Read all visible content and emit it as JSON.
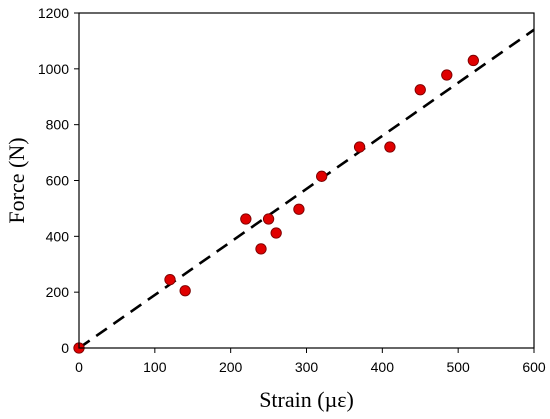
{
  "chart_data": {
    "type": "scatter",
    "title": "",
    "xlabel": "Strain (µε)",
    "ylabel": "Force (N)",
    "xlim": [
      0,
      600
    ],
    "ylim": [
      0,
      1200
    ],
    "x_ticks": [
      0,
      100,
      200,
      300,
      400,
      500,
      600
    ],
    "y_ticks": [
      0,
      200,
      400,
      600,
      800,
      1000,
      1200
    ],
    "grid": false,
    "legend": "none",
    "series": [
      {
        "type": "scatter",
        "color": "#e00000",
        "edge_color": "#7a0000",
        "points": [
          {
            "x": 0,
            "y": 0
          },
          {
            "x": 120,
            "y": 245
          },
          {
            "x": 140,
            "y": 205
          },
          {
            "x": 220,
            "y": 462
          },
          {
            "x": 240,
            "y": 355
          },
          {
            "x": 250,
            "y": 462
          },
          {
            "x": 260,
            "y": 412
          },
          {
            "x": 290,
            "y": 497
          },
          {
            "x": 320,
            "y": 615
          },
          {
            "x": 370,
            "y": 720
          },
          {
            "x": 410,
            "y": 720
          },
          {
            "x": 450,
            "y": 925
          },
          {
            "x": 485,
            "y": 978
          },
          {
            "x": 520,
            "y": 1030
          }
        ]
      },
      {
        "type": "line",
        "style": "dashed",
        "color": "#000000",
        "points": [
          {
            "x": 0,
            "y": 0
          },
          {
            "x": 600,
            "y": 1140
          }
        ]
      }
    ]
  }
}
